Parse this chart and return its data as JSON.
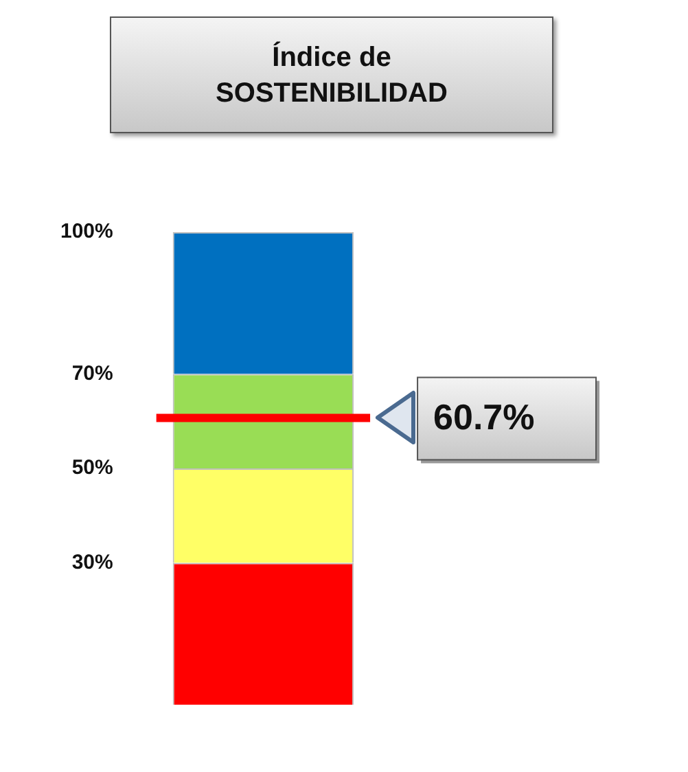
{
  "chart_data": {
    "type": "bar",
    "title": "Índice de SOSTENIBILIDAD",
    "categories": [
      null
    ],
    "stacked": true,
    "series": [
      {
        "color": "#ff0000",
        "values": [
          30
        ]
      },
      {
        "color": "#ffff66",
        "values": [
          20
        ]
      },
      {
        "color": "#99dd55",
        "values": [
          20
        ]
      },
      {
        "color": "#0070c0",
        "values": [
          30
        ]
      }
    ],
    "ylim": [
      0,
      100
    ],
    "yticks": [
      {
        "value": 30,
        "label": "30%"
      },
      {
        "value": 50,
        "label": "50%"
      },
      {
        "value": 70,
        "label": "70%"
      },
      {
        "value": 100,
        "label": "100%"
      }
    ],
    "tick_labels": "y",
    "ref_lines": [
      {
        "axis": "y",
        "value": 60.7,
        "label": "60.7%",
        "color": "#ff0000"
      }
    ]
  }
}
